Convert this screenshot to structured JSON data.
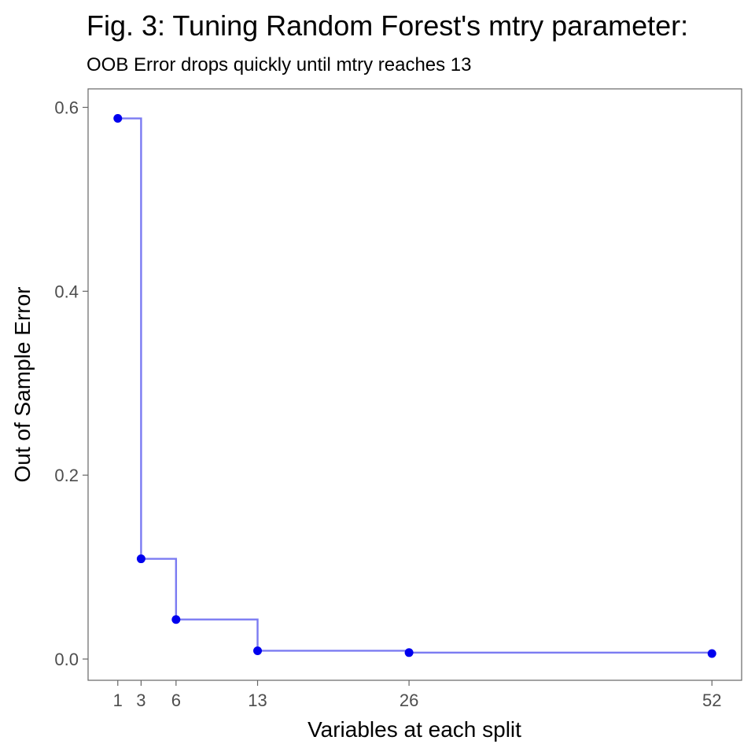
{
  "title": "Fig. 3: Tuning Random Forest's mtry parameter:",
  "subtitle": "OOB Error drops quickly until mtry reaches 13",
  "colors": {
    "line": "#7b7bf2",
    "point": "#0000ee",
    "panel_border": "#666666",
    "tick_label": "#4d4d4d"
  },
  "chart_data": {
    "type": "line",
    "step": true,
    "title": "Fig. 3: Tuning Random Forest's mtry parameter:",
    "subtitle": "OOB Error drops quickly until mtry reaches 13",
    "xlabel": "Variables at each split",
    "ylabel": "Out of Sample Error",
    "x": [
      1,
      3,
      6,
      13,
      26,
      52
    ],
    "values": [
      0.588,
      0.109,
      0.043,
      0.009,
      0.007,
      0.006
    ],
    "xlim": [
      -1.55,
      54.55
    ],
    "ylim": [
      -0.0231,
      0.6201
    ],
    "x_ticks": [
      1,
      3,
      6,
      13,
      26,
      52
    ],
    "x_tick_labels": [
      "1",
      "3",
      "6",
      "13",
      "26",
      "52"
    ],
    "y_ticks": [
      0.0,
      0.2,
      0.4,
      0.6
    ],
    "y_tick_labels": [
      "0.0",
      "0.2",
      "0.4",
      "0.6"
    ],
    "grid": false,
    "legend": "none"
  }
}
